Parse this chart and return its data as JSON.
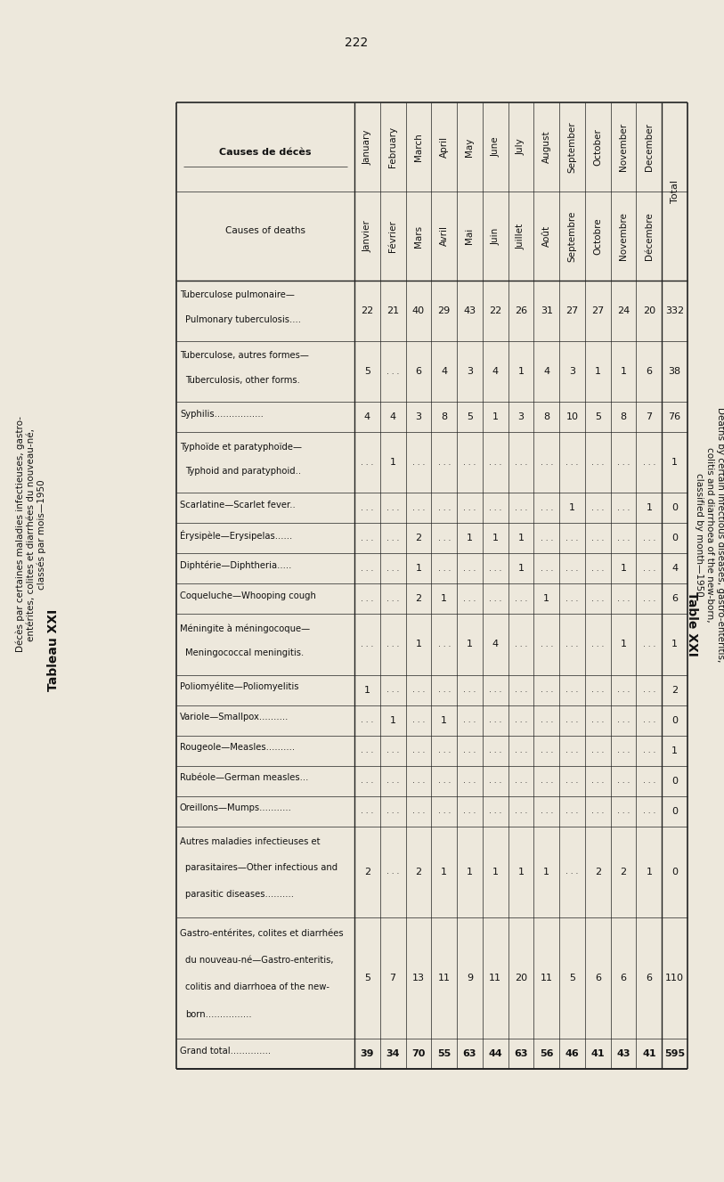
{
  "page_number": "222",
  "title_tableau": "Tableau XXI",
  "subtitle_tableau": "Décès par certaines maladies infectieuses, gastro-\nentérites, colites et diarrhées du nouveau-né,\nclassés par mois—1950",
  "title_table": "Table XXI",
  "subtitle_table": "Deaths by certain infectious diseases, gastro-enteritis,\ncolitis and diarrhoea of the new-born,\nclassified by month—1950",
  "col_en": [
    "January",
    "February",
    "March",
    "April",
    "May",
    "June",
    "July",
    "August",
    "September",
    "October",
    "November",
    "December",
    "Total"
  ],
  "col_fr": [
    "Janvier",
    "Février",
    "Mars",
    "Avril",
    "Mai",
    "Juin",
    "Juillet",
    "Août",
    "Septembre",
    "Octobre",
    "Novembre",
    "Décembre",
    "Total"
  ],
  "causes": [
    [
      "Tuberculose pulmonaire—",
      "Pulmonary tuberculosis...."
    ],
    [
      "Tuberculose, autres formes—",
      "Tuberculosis, other forms."
    ],
    [
      "Syphilis................."
    ],
    [
      "Typhoïde et paratyphoïde—",
      "Typhoid and paratyphoid.."
    ],
    [
      "Scarlatine—Scarlet fever.."
    ],
    [
      "Érysipèle—Erysipelas......"
    ],
    [
      "Diphtérie—Diphtheria....."
    ],
    [
      "Coqueluche—Whooping cough"
    ],
    [
      "Méningite à méningocoque—",
      "Meningococcal meningitis."
    ],
    [
      "Poliomyélite—Poliomyelitis"
    ],
    [
      "Variole—Smallpox.........."
    ],
    [
      "Rougeole—Measles.........."
    ],
    [
      "Rubéole—German measles..."
    ],
    [
      "Oreillons—Mumps..........."
    ],
    [
      "Autres maladies infectieuses et",
      "parasitaires—Other infectious and",
      "parasitic diseases.........."
    ],
    [
      "Gastro-entérites, colites et diarrhées",
      "du nouveau-né—Gastro-enteritis,",
      "colitis and diarrhoea of the new-",
      "born................"
    ],
    [
      "Grand total.............."
    ]
  ],
  "data": [
    [
      22,
      21,
      40,
      29,
      43,
      22,
      26,
      31,
      27,
      27,
      24,
      20,
      332
    ],
    [
      5,
      ".",
      6,
      4,
      3,
      4,
      1,
      4,
      3,
      1,
      1,
      6,
      38
    ],
    [
      4,
      4,
      3,
      8,
      5,
      1,
      3,
      8,
      10,
      5,
      8,
      7,
      76
    ],
    [
      ".",
      1,
      ".",
      ".",
      ".",
      ".",
      ".",
      ".",
      ".",
      ".",
      ".",
      ".",
      1
    ],
    [
      ".",
      ".",
      ".",
      ".",
      ".",
      ".",
      ".",
      ".",
      1,
      ".",
      ".",
      1,
      0
    ],
    [
      ".",
      ".",
      2,
      ".",
      1,
      1,
      1,
      ".",
      ".",
      ".",
      ".",
      ".",
      0
    ],
    [
      ".",
      ".",
      1,
      ".",
      ".",
      ".",
      1,
      ".",
      ".",
      ".",
      1,
      ".",
      4
    ],
    [
      ".",
      ".",
      2,
      1,
      ".",
      ".",
      ".",
      1,
      ".",
      ".",
      ".",
      ".",
      6
    ],
    [
      ".",
      ".",
      1,
      ".",
      1,
      4,
      ".",
      ".",
      ".",
      ".",
      1,
      ".",
      1
    ],
    [
      1,
      ".",
      ".",
      ".",
      ".",
      ".",
      ".",
      ".",
      ".",
      ".",
      ".",
      ".",
      2
    ],
    [
      ".",
      1,
      ".",
      1,
      ".",
      ".",
      ".",
      ".",
      ".",
      ".",
      ".",
      ".",
      0
    ],
    [
      ".",
      ".",
      ".",
      ".",
      ".",
      ".",
      ".",
      ".",
      ".",
      ".",
      ".",
      ".",
      1
    ],
    [
      ".",
      ".",
      ".",
      ".",
      ".",
      ".",
      ".",
      ".",
      ".",
      ".",
      ".",
      ".",
      0
    ],
    [
      ".",
      ".",
      ".",
      ".",
      ".",
      ".",
      ".",
      ".",
      ".",
      ".",
      ".",
      ".",
      0
    ],
    [
      2,
      ".",
      2,
      1,
      1,
      1,
      1,
      1,
      ".",
      2,
      2,
      1,
      0
    ],
    [
      5,
      7,
      13,
      11,
      9,
      11,
      20,
      11,
      5,
      6,
      6,
      6,
      110
    ],
    [
      39,
      34,
      70,
      55,
      63,
      44,
      63,
      56,
      46,
      41,
      43,
      41,
      595
    ]
  ],
  "bg_color": "#ede8dc",
  "text_color": "#111111",
  "line_color": "#222222"
}
